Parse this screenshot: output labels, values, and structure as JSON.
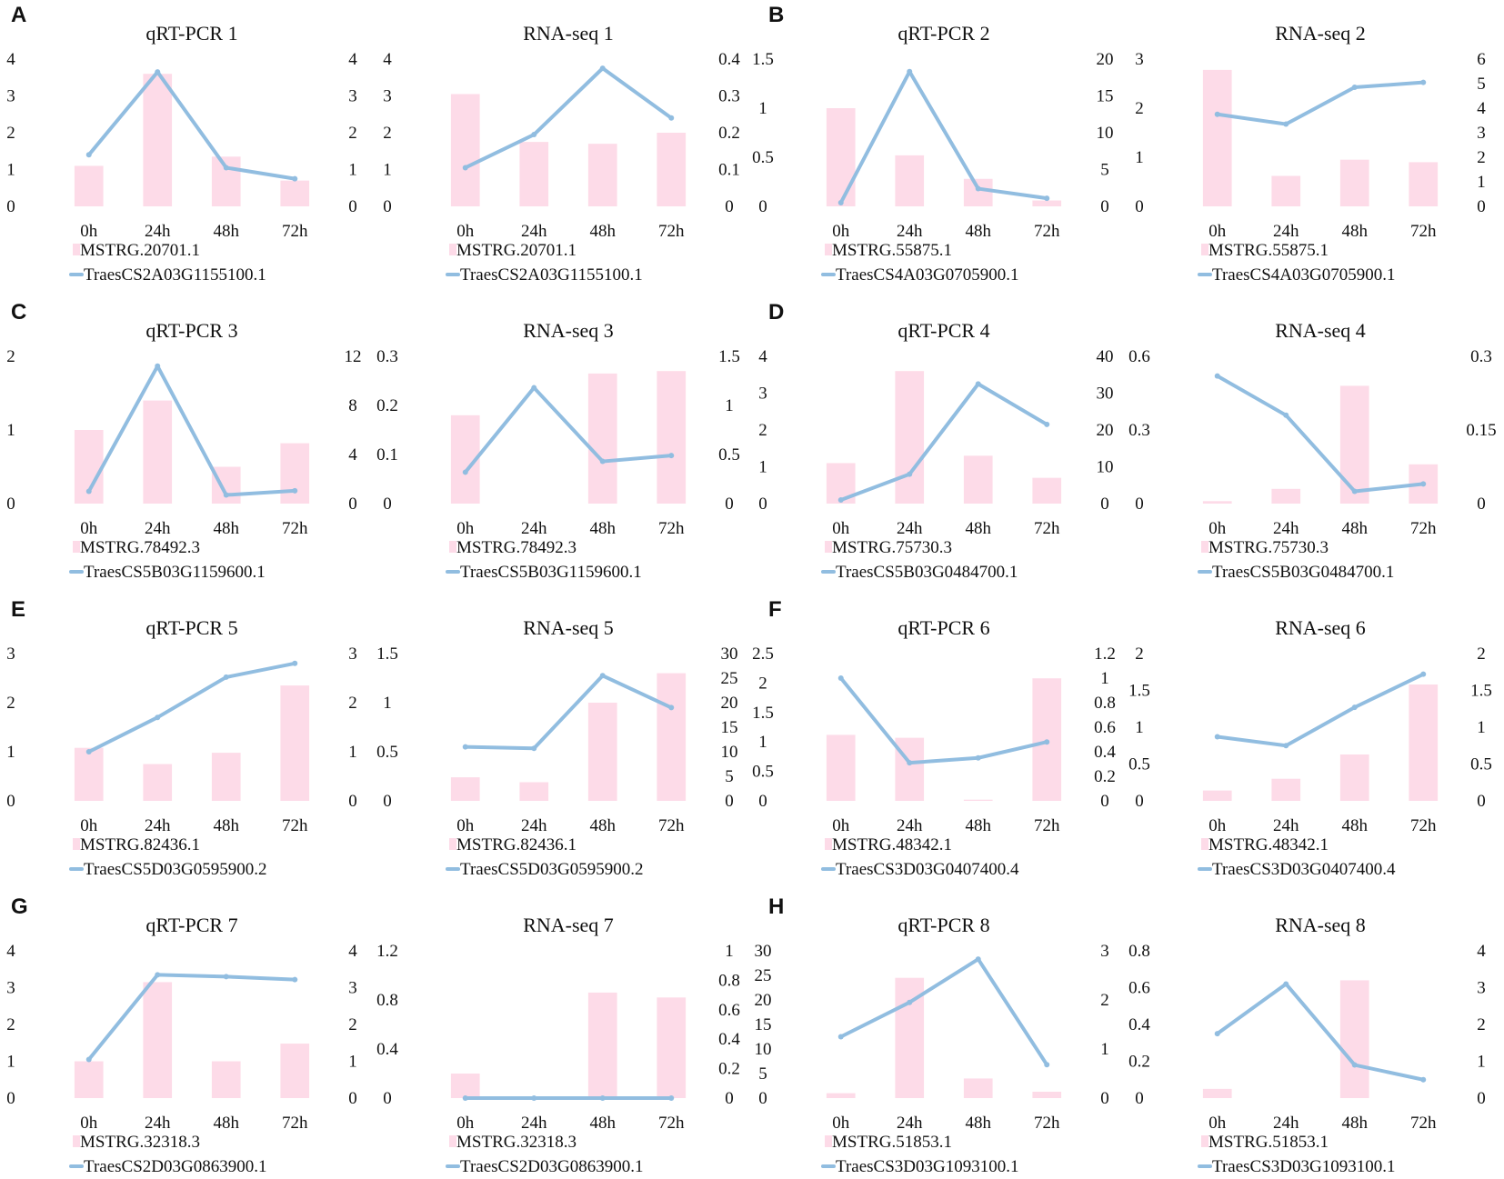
{
  "colors": {
    "bar": "#fddbe8",
    "line": "#91bde0"
  },
  "panel_letters": [
    "A",
    "B",
    "C",
    "D",
    "E",
    "F",
    "G",
    "H"
  ],
  "chart_data": [
    {
      "type": "bar+line",
      "title": "qRT-PCR 1",
      "categories": [
        "0h",
        "24h",
        "48h",
        "72h"
      ],
      "bar": {
        "name": "MSTRG.20701.1",
        "values": [
          1.1,
          3.6,
          1.35,
          0.7
        ],
        "ylim": [
          0,
          4
        ],
        "ticks": [
          0,
          1,
          2,
          3,
          4
        ],
        "tick_labels": [
          "0",
          "1",
          "2",
          "3",
          "4"
        ]
      },
      "line": {
        "name": "TraesCS2A03G1155100.1",
        "values": [
          1.4,
          3.65,
          1.05,
          0.75
        ],
        "ylim": [
          0,
          4
        ],
        "ticks": [
          0,
          1,
          2,
          3,
          4
        ],
        "tick_labels": [
          "0",
          "1",
          "2",
          "3",
          "4"
        ]
      }
    },
    {
      "type": "bar+line",
      "title": "RNA-seq 1",
      "categories": [
        "0h",
        "24h",
        "48h",
        "72h"
      ],
      "bar": {
        "name": "MSTRG.20701.1",
        "values": [
          3.05,
          1.75,
          1.7,
          2.0
        ],
        "ylim": [
          0,
          4
        ],
        "ticks": [
          0,
          1,
          2,
          3,
          4
        ],
        "tick_labels": [
          "0",
          "1",
          "2",
          "3",
          "4"
        ]
      },
      "line": {
        "name": "TraesCS2A03G1155100.1",
        "values": [
          0.105,
          0.195,
          0.375,
          0.24
        ],
        "ylim": [
          0,
          0.4
        ],
        "ticks": [
          0,
          0.1,
          0.2,
          0.3,
          0.4
        ],
        "tick_labels": [
          "0",
          "0.1",
          "0.2",
          "0.3",
          "0.4"
        ]
      }
    },
    {
      "type": "bar+line",
      "title": "qRT-PCR 2",
      "categories": [
        "0h",
        "24h",
        "48h",
        "72h"
      ],
      "bar": {
        "name": "MSTRG.55875.1",
        "values": [
          1.0,
          0.52,
          0.28,
          0.06
        ],
        "ylim": [
          0,
          1.5
        ],
        "ticks": [
          0,
          0.5,
          1,
          1.5
        ],
        "tick_labels": [
          "0",
          "0.5",
          "1",
          "1.5"
        ]
      },
      "line": {
        "name": "TraesCS4A03G0705900.1",
        "values": [
          0.5,
          18.3,
          2.4,
          1.1
        ],
        "ylim": [
          0,
          20
        ],
        "ticks": [
          0,
          5,
          10,
          15,
          20
        ],
        "tick_labels": [
          "0",
          "5",
          "10",
          "15",
          "20"
        ]
      }
    },
    {
      "type": "bar+line",
      "title": "RNA-seq 2",
      "categories": [
        "0h",
        "24h",
        "48h",
        "72h"
      ],
      "bar": {
        "name": "MSTRG.55875.1",
        "values": [
          2.78,
          0.62,
          0.95,
          0.9
        ],
        "ylim": [
          0,
          3
        ],
        "ticks": [
          0,
          1,
          2,
          3
        ],
        "tick_labels": [
          "0",
          "1",
          "2",
          "3"
        ]
      },
      "line": {
        "name": "TraesCS4A03G0705900.1",
        "values": [
          3.75,
          3.35,
          4.85,
          5.05
        ],
        "ylim": [
          0,
          6
        ],
        "ticks": [
          0,
          1,
          2,
          3,
          4,
          5,
          6
        ],
        "tick_labels": [
          "0",
          "1",
          "2",
          "3",
          "4",
          "5",
          "6"
        ]
      }
    },
    {
      "type": "bar+line",
      "title": "qRT-PCR 3",
      "categories": [
        "0h",
        "24h",
        "48h",
        "72h"
      ],
      "bar": {
        "name": "MSTRG.78492.3",
        "values": [
          1.0,
          1.4,
          0.5,
          0.82
        ],
        "ylim": [
          0,
          2
        ],
        "ticks": [
          0,
          1,
          2
        ],
        "tick_labels": [
          "0",
          "1",
          "2"
        ]
      },
      "line": {
        "name": "TraesCS5B03G1159600.1",
        "values": [
          1.0,
          11.2,
          0.7,
          1.05
        ],
        "ylim": [
          0,
          12
        ],
        "ticks": [
          0,
          4,
          8,
          12
        ],
        "tick_labels": [
          "0",
          "4",
          "8",
          "12"
        ]
      }
    },
    {
      "type": "bar+line",
      "title": "RNA-seq 3",
      "categories": [
        "0h",
        "24h",
        "48h",
        "72h"
      ],
      "bar": {
        "name": "MSTRG.78492.3",
        "values": [
          0.18,
          0.0,
          0.265,
          0.27
        ],
        "ylim": [
          0,
          0.3
        ],
        "ticks": [
          0,
          0.1,
          0.2,
          0.3
        ],
        "tick_labels": [
          "0",
          "0.1",
          "0.2",
          "0.3"
        ]
      },
      "line": {
        "name": "TraesCS5B03G1159600.1",
        "values": [
          0.32,
          1.18,
          0.43,
          0.49
        ],
        "ylim": [
          0,
          1.5
        ],
        "ticks": [
          0,
          0.5,
          1,
          1.5
        ],
        "tick_labels": [
          "0",
          "0.5",
          "1",
          "1.5"
        ]
      }
    },
    {
      "type": "bar+line",
      "title": "qRT-PCR 4",
      "categories": [
        "0h",
        "24h",
        "48h",
        "72h"
      ],
      "bar": {
        "name": "MSTRG.75730.3",
        "values": [
          1.1,
          3.6,
          1.3,
          0.7
        ],
        "ylim": [
          0,
          4
        ],
        "ticks": [
          0,
          1,
          2,
          3,
          4
        ],
        "tick_labels": [
          "0",
          "1",
          "2",
          "3",
          "4"
        ]
      },
      "line": {
        "name": "TraesCS5B03G0484700.1",
        "values": [
          1.0,
          8.0,
          32.5,
          21.5
        ],
        "ylim": [
          0,
          40
        ],
        "ticks": [
          0,
          10,
          20,
          30,
          40
        ],
        "tick_labels": [
          "0",
          "10",
          "20",
          "30",
          "40"
        ]
      }
    },
    {
      "type": "bar+line",
      "title": "RNA-seq 4",
      "categories": [
        "0h",
        "24h",
        "48h",
        "72h"
      ],
      "bar": {
        "name": "MSTRG.75730.3",
        "values": [
          0.01,
          0.06,
          0.48,
          0.16
        ],
        "ylim": [
          0,
          0.6
        ],
        "ticks": [
          0,
          0.3,
          0.6
        ],
        "tick_labels": [
          "0",
          "0.3",
          "0.6"
        ]
      },
      "line": {
        "name": "TraesCS5B03G0484700.1",
        "values": [
          0.26,
          0.18,
          0.025,
          0.04
        ],
        "ylim": [
          0,
          0.3
        ],
        "ticks": [
          0,
          0.15,
          0.3
        ],
        "tick_labels": [
          "0",
          "0.15",
          "0.3"
        ]
      }
    },
    {
      "type": "bar+line",
      "title": "qRT-PCR 5",
      "categories": [
        "0h",
        "24h",
        "48h",
        "72h"
      ],
      "bar": {
        "name": "MSTRG.82436.1",
        "values": [
          1.08,
          0.75,
          0.98,
          2.35
        ],
        "ylim": [
          0,
          3
        ],
        "ticks": [
          0,
          1,
          2,
          3
        ],
        "tick_labels": [
          "0",
          "1",
          "2",
          "3"
        ]
      },
      "line": {
        "name": "TraesCS5D03G0595900.2",
        "values": [
          1.0,
          1.7,
          2.52,
          2.8
        ],
        "ylim": [
          0,
          3
        ],
        "ticks": [
          0,
          1,
          2,
          3
        ],
        "tick_labels": [
          "0",
          "1",
          "2",
          "3"
        ]
      }
    },
    {
      "type": "bar+line",
      "title": "RNA-seq 5",
      "categories": [
        "0h",
        "24h",
        "48h",
        "72h"
      ],
      "bar": {
        "name": "MSTRG.82436.1",
        "values": [
          0.24,
          0.19,
          1.0,
          1.3
        ],
        "ylim": [
          0,
          1.5
        ],
        "ticks": [
          0,
          0.5,
          1,
          1.5
        ],
        "tick_labels": [
          "0",
          "0.5",
          "1",
          "1.5"
        ]
      },
      "line": {
        "name": "TraesCS5D03G0595900.2",
        "values": [
          11.0,
          10.7,
          25.5,
          19.0
        ],
        "ylim": [
          0,
          30
        ],
        "ticks": [
          0,
          5,
          10,
          15,
          20,
          25,
          30
        ],
        "tick_labels": [
          "0",
          "5",
          "10",
          "15",
          "20",
          "25",
          "30"
        ]
      }
    },
    {
      "type": "bar+line",
      "title": "qRT-PCR 6",
      "categories": [
        "0h",
        "24h",
        "48h",
        "72h"
      ],
      "bar": {
        "name": "MSTRG.48342.1",
        "values": [
          1.12,
          1.07,
          0.02,
          2.08
        ],
        "ylim": [
          0,
          2.5
        ],
        "ticks": [
          0,
          0.5,
          1,
          1.5,
          2,
          2.5
        ],
        "tick_labels": [
          "0",
          "0.5",
          "1",
          "1.5",
          "2",
          "2.5"
        ]
      },
      "line": {
        "name": "TraesCS3D03G0407400.4",
        "values": [
          1.0,
          0.31,
          0.35,
          0.48
        ],
        "ylim": [
          0,
          1.2
        ],
        "ticks": [
          0,
          0.2,
          0.4,
          0.6,
          0.8,
          1,
          1.2
        ],
        "tick_labels": [
          "0",
          "0.2",
          "0.4",
          "0.6",
          "0.8",
          "1",
          "1.2"
        ]
      }
    },
    {
      "type": "bar+line",
      "title": "RNA-seq 6",
      "categories": [
        "0h",
        "24h",
        "48h",
        "72h"
      ],
      "bar": {
        "name": "MSTRG.48342.1",
        "values": [
          0.14,
          0.3,
          0.63,
          1.58
        ],
        "ylim": [
          0,
          2
        ],
        "ticks": [
          0,
          0.5,
          1,
          1.5,
          2
        ],
        "tick_labels": [
          "0",
          "0.5",
          "1",
          "1.5",
          "2"
        ]
      },
      "line": {
        "name": "TraesCS3D03G0407400.4",
        "values": [
          0.87,
          0.75,
          1.27,
          1.72
        ],
        "ylim": [
          0,
          2
        ],
        "ticks": [
          0,
          0.5,
          1,
          1.5,
          2
        ],
        "tick_labels": [
          "0",
          "0.5",
          "1",
          "1.5",
          "2"
        ]
      }
    },
    {
      "type": "bar+line",
      "title": "qRT-PCR 7",
      "categories": [
        "0h",
        "24h",
        "48h",
        "72h"
      ],
      "bar": {
        "name": "MSTRG.32318.3",
        "values": [
          1.0,
          3.15,
          1.0,
          1.48
        ],
        "ylim": [
          0,
          4
        ],
        "ticks": [
          0,
          1,
          2,
          3,
          4
        ],
        "tick_labels": [
          "0",
          "1",
          "2",
          "3",
          "4"
        ]
      },
      "line": {
        "name": "TraesCS2D03G0863900.1",
        "values": [
          1.05,
          3.35,
          3.3,
          3.22
        ],
        "ylim": [
          0,
          4
        ],
        "ticks": [
          0,
          1,
          2,
          3,
          4
        ],
        "tick_labels": [
          "0",
          "1",
          "2",
          "3",
          "4"
        ]
      }
    },
    {
      "type": "bar+line",
      "title": "RNA-seq 7",
      "categories": [
        "0h",
        "24h",
        "48h",
        "72h"
      ],
      "bar": {
        "name": "MSTRG.32318.3",
        "values": [
          0.2,
          0.0,
          0.86,
          0.82
        ],
        "ylim": [
          0,
          1.2
        ],
        "ticks": [
          0,
          0.4,
          0.8,
          1.2
        ],
        "tick_labels": [
          "0",
          "0.4",
          "0.8",
          "1.2"
        ]
      },
      "line": {
        "name": "TraesCS2D03G0863900.1",
        "values": [
          0,
          0,
          0,
          0
        ],
        "ylim": [
          0,
          1
        ],
        "ticks": [
          0,
          0.2,
          0.4,
          0.6,
          0.8,
          1
        ],
        "tick_labels": [
          "0",
          "0.2",
          "0.4",
          "0.6",
          "0.8",
          "1"
        ]
      }
    },
    {
      "type": "bar+line",
      "title": "qRT-PCR 8",
      "categories": [
        "0h",
        "24h",
        "48h",
        "72h"
      ],
      "bar": {
        "name": "MSTRG.51853.1",
        "values": [
          1.0,
          24.5,
          4.0,
          1.3
        ],
        "ylim": [
          0,
          30
        ],
        "ticks": [
          0,
          5,
          10,
          15,
          20,
          25,
          30
        ],
        "tick_labels": [
          "0",
          "5",
          "10",
          "15",
          "20",
          "25",
          "30"
        ]
      },
      "line": {
        "name": "TraesCS3D03G1093100.1",
        "values": [
          1.25,
          1.95,
          2.83,
          0.68
        ],
        "ylim": [
          0,
          3
        ],
        "ticks": [
          0,
          1,
          2,
          3
        ],
        "tick_labels": [
          "0",
          "1",
          "2",
          "3"
        ]
      }
    },
    {
      "type": "bar+line",
      "title": "RNA-seq 8",
      "categories": [
        "0h",
        "24h",
        "48h",
        "72h"
      ],
      "bar": {
        "name": "MSTRG.51853.1",
        "values": [
          0.05,
          0.0,
          0.64,
          0.0
        ],
        "ylim": [
          0,
          0.8
        ],
        "ticks": [
          0,
          0.2,
          0.4,
          0.6,
          0.8
        ],
        "tick_labels": [
          "0",
          "0.2",
          "0.4",
          "0.6",
          "0.8"
        ]
      },
      "line": {
        "name": "TraesCS3D03G1093100.1",
        "values": [
          1.75,
          3.1,
          0.9,
          0.5
        ],
        "ylim": [
          0,
          4
        ],
        "ticks": [
          0,
          1,
          2,
          3,
          4
        ],
        "tick_labels": [
          "0",
          "1",
          "2",
          "3",
          "4"
        ]
      }
    }
  ]
}
